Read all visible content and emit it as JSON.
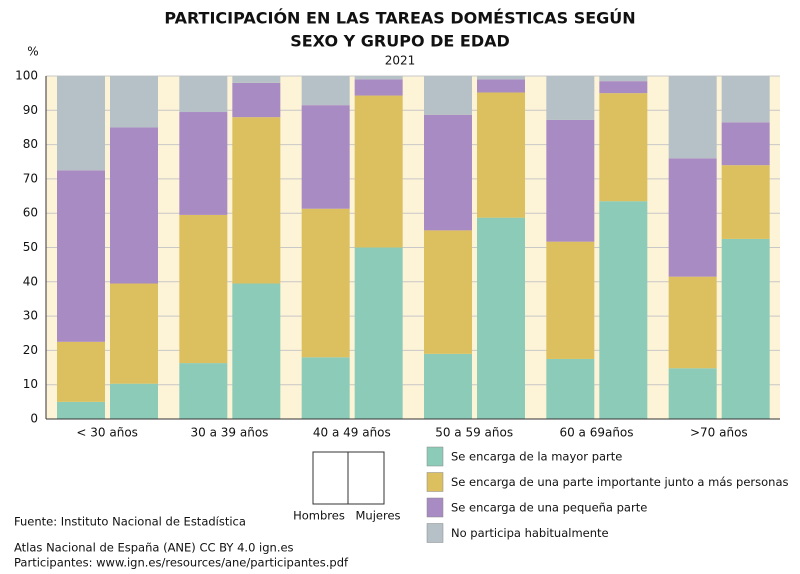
{
  "chart_data": {
    "type": "bar",
    "stacked": true,
    "title": [
      "PARTICIPACIÓN EN LAS TAREAS DOMÉSTICAS SEGÚN",
      "SEXO Y GRUPO DE EDAD"
    ],
    "subtitle": "2021",
    "y_unit": "%",
    "categories": [
      "< 30 años",
      "30 a 39 años",
      "40 a 49 años",
      "50 a 59 años",
      "60 a 69años",
      ">70 años"
    ],
    "subgroups": [
      "Hombres",
      "Mujeres"
    ],
    "series": [
      {
        "name": "Se encarga de la mayor parte",
        "color": "#8ccbb7",
        "values": [
          [
            5,
            10.3
          ],
          [
            16.3,
            39.5
          ],
          [
            18,
            50
          ],
          [
            19,
            58.7
          ],
          [
            17.5,
            63.5
          ],
          [
            14.8,
            52.5
          ]
        ]
      },
      {
        "name": "Se encarga de una parte importante junto a más personas",
        "color": "#dcc060",
        "values": [
          [
            17.5,
            29.2
          ],
          [
            43.2,
            48.5
          ],
          [
            43.3,
            44.3
          ],
          [
            36,
            36.5
          ],
          [
            34.2,
            31.5
          ],
          [
            26.7,
            21.5
          ]
        ]
      },
      {
        "name": "Se encarga de una pequeña parte",
        "color": "#a98bc4",
        "values": [
          [
            50,
            45.5
          ],
          [
            30,
            10
          ],
          [
            30.2,
            4.7
          ],
          [
            33.7,
            3.8
          ],
          [
            35.5,
            3.5
          ],
          [
            34.5,
            12.5
          ]
        ]
      },
      {
        "name": "No participa habitualmente",
        "color": "#b5c1c6",
        "values": [
          [
            27.5,
            15
          ],
          [
            10.5,
            2
          ],
          [
            8.5,
            1
          ],
          [
            11.3,
            1
          ],
          [
            12.8,
            1.5
          ],
          [
            24,
            13.5
          ]
        ]
      }
    ],
    "ylim": [
      0,
      100
    ],
    "yticks": [
      0,
      10,
      20,
      30,
      40,
      50,
      60,
      70,
      80,
      90,
      100
    ],
    "grid": true
  },
  "notes": [
    "Fuente: Instituto Nacional de Estadística",
    "Atlas Nacional de España (ANE) CC BY 4.0 ign.es",
    "Participantes: www.ign.es/resources/ane/participantes.pdf"
  ]
}
